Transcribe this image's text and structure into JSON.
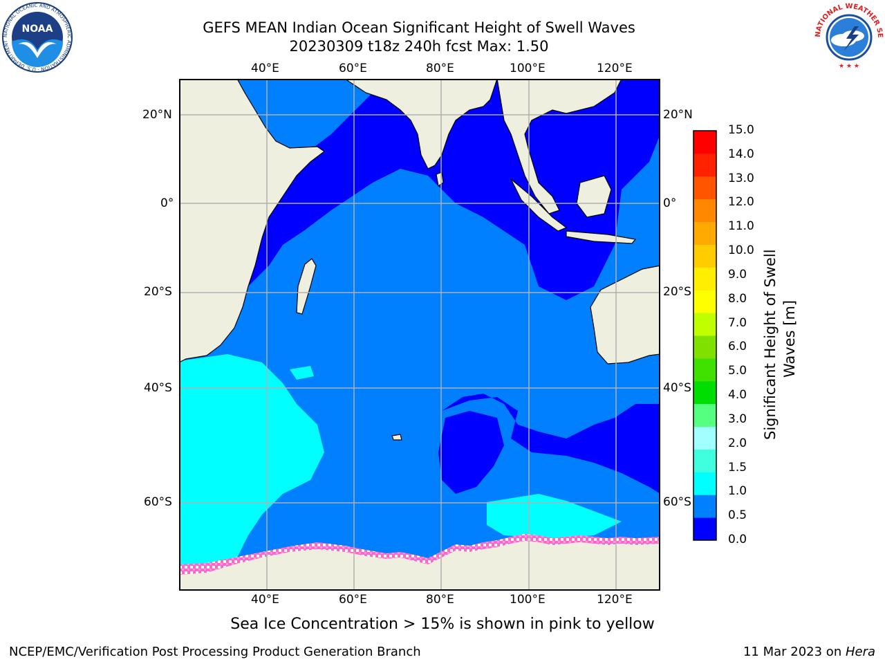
{
  "title": {
    "line1": "GEFS MEAN Indian Ocean Significant Height of Swell Waves",
    "line2": "20230309 t18z 240h fcst   Max: 1.50"
  },
  "axes": {
    "lon_ticks": [
      "40°E",
      "60°E",
      "80°E",
      "100°E",
      "120°E"
    ],
    "lat_ticks": [
      "20°N",
      "0°",
      "20°S",
      "40°S",
      "60°S"
    ]
  },
  "colorbar": {
    "label_line1": "Significant Height of Swell",
    "label_line2": "Waves [m]",
    "ticks": [
      "15.0",
      "14.0",
      "13.0",
      "12.0",
      "11.0",
      "10.0",
      "9.0",
      "8.0",
      "7.0",
      "6.0",
      "5.0",
      "4.0",
      "3.0",
      "2.0",
      "1.5",
      "1.0",
      "0.5",
      "0.0"
    ],
    "colors_bottom_to_top": [
      "#0000ff",
      "#0080ff",
      "#00ffff",
      "#40ffdf",
      "#a0ffff",
      "#55ff80",
      "#00dd00",
      "#40e000",
      "#80e000",
      "#c0ff00",
      "#ffff00",
      "#ffee00",
      "#ffcc00",
      "#ffaa00",
      "#ff8800",
      "#ff5500",
      "#ff2200",
      "#ff0000"
    ]
  },
  "caption": "Sea Ice Concentration > 15% is shown in pink to yellow",
  "footer": {
    "left": "NCEP/EMC/Verification Post Processing Product Generation Branch",
    "right_date": "11 Mar 2023 on ",
    "right_host": "Hera"
  },
  "logos": {
    "noaa": "NOAA",
    "noaa_ring": "NATIONAL OCEANIC AND ATMOSPHERIC ADMINISTRATION · U.S. DEPARTMENT OF COMMERCE",
    "nws_ring": "NATIONAL WEATHER SERVICE"
  },
  "colors": {
    "land": "#efefdf",
    "swell_lt_05": "#0000ff",
    "swell_05_10": "#0080ff",
    "swell_10_15": "#00ffff",
    "sea_ice": "#ff66cc"
  }
}
